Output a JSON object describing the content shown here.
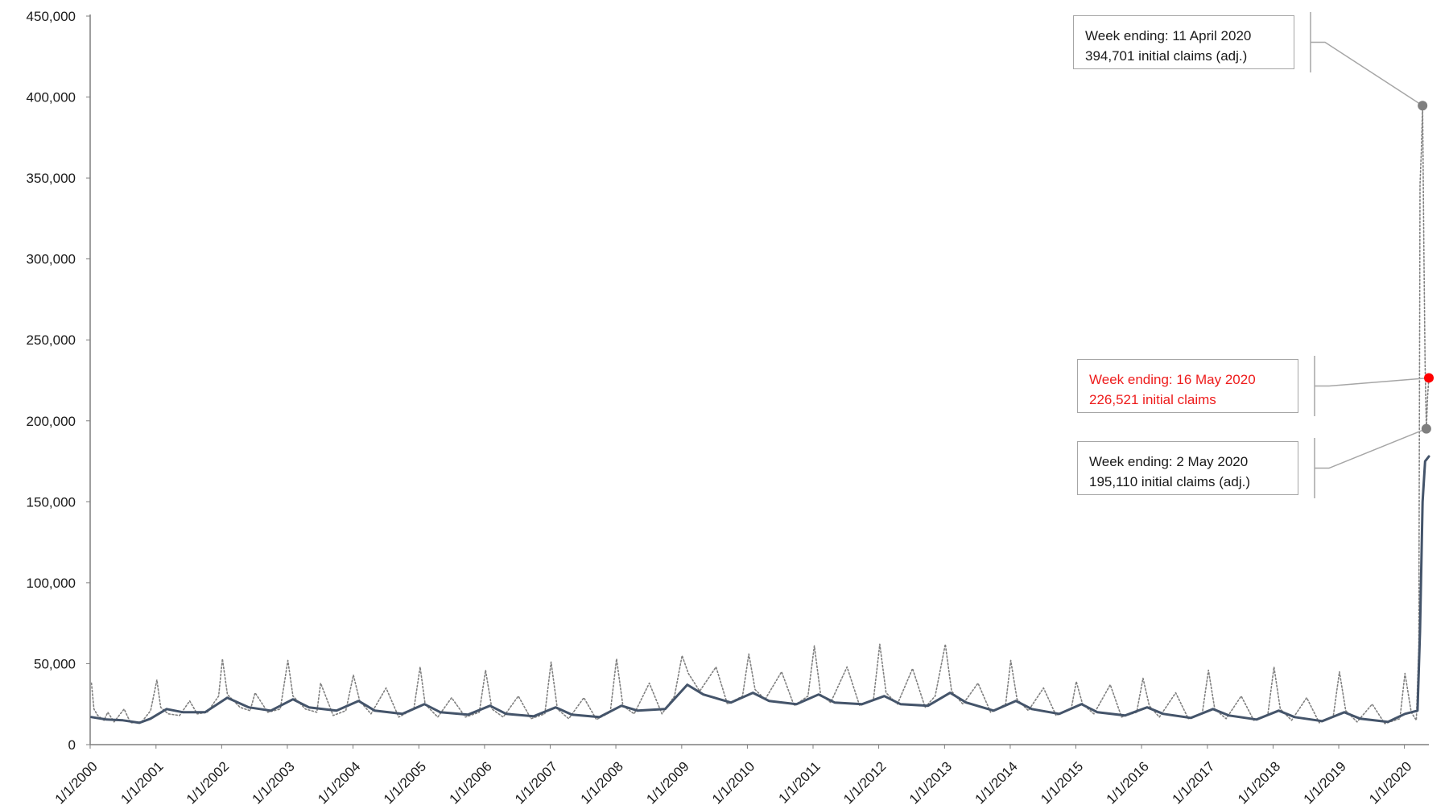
{
  "chart_data": {
    "type": "line",
    "title": "",
    "xlabel": "",
    "ylabel": "",
    "ylim": [
      0,
      450000
    ],
    "yticks": [
      0,
      50000,
      100000,
      150000,
      200000,
      250000,
      300000,
      350000,
      400000,
      450000
    ],
    "ytick_labels": [
      "0",
      "50,000",
      "100,000",
      "150,000",
      "200,000",
      "250,000",
      "300,000",
      "350,000",
      "400,000",
      "450,000"
    ],
    "xlim": [
      "2000-01-01",
      "2020-05-16"
    ],
    "xticks": [
      "2000-01-01",
      "2001-01-01",
      "2002-01-01",
      "2003-01-01",
      "2004-01-01",
      "2005-01-01",
      "2006-01-01",
      "2007-01-01",
      "2008-01-01",
      "2009-01-01",
      "2010-01-01",
      "2011-01-01",
      "2012-01-01",
      "2013-01-01",
      "2014-01-01",
      "2015-01-01",
      "2016-01-01",
      "2017-01-01",
      "2018-01-01",
      "2019-01-01",
      "2020-01-01"
    ],
    "xtick_labels": [
      "1/1/2000",
      "1/1/2001",
      "1/1/2002",
      "1/1/2003",
      "1/1/2004",
      "1/1/2005",
      "1/1/2006",
      "1/1/2007",
      "1/1/2008",
      "1/1/2009",
      "1/1/2010",
      "1/1/2011",
      "1/1/2012",
      "1/1/2013",
      "1/1/2014",
      "1/1/2015",
      "1/1/2016",
      "1/1/2017",
      "1/1/2018",
      "1/1/2019",
      "1/1/2020"
    ],
    "grid": false,
    "legend": "none",
    "series": [
      {
        "style": "dotted",
        "color": "#808080",
        "points": [
          [
            "2000-01-08",
            38000
          ],
          [
            "2000-01-22",
            22000
          ],
          [
            "2000-02-12",
            18000
          ],
          [
            "2000-03-18",
            15000
          ],
          [
            "2000-04-08",
            20000
          ],
          [
            "2000-05-13",
            14000
          ],
          [
            "2000-07-08",
            22000
          ],
          [
            "2000-08-12",
            13500
          ],
          [
            "2000-10-14",
            14000
          ],
          [
            "2000-12-02",
            21000
          ],
          [
            "2001-01-06",
            40000
          ],
          [
            "2001-01-27",
            23000
          ],
          [
            "2001-03-10",
            19000
          ],
          [
            "2001-05-12",
            18000
          ],
          [
            "2001-07-07",
            27000
          ],
          [
            "2001-08-18",
            19000
          ],
          [
            "2001-10-13",
            20000
          ],
          [
            "2001-12-15",
            30000
          ],
          [
            "2002-01-05",
            53000
          ],
          [
            "2002-02-02",
            31000
          ],
          [
            "2002-04-13",
            23000
          ],
          [
            "2002-06-08",
            21000
          ],
          [
            "2002-07-06",
            32000
          ],
          [
            "2002-09-14",
            20000
          ],
          [
            "2002-11-23",
            22000
          ],
          [
            "2003-01-04",
            52000
          ],
          [
            "2003-02-01",
            30000
          ],
          [
            "2003-04-12",
            22000
          ],
          [
            "2003-06-14",
            20000
          ],
          [
            "2003-07-05",
            38000
          ],
          [
            "2003-09-13",
            18000
          ],
          [
            "2003-11-22",
            21000
          ],
          [
            "2004-01-03",
            43000
          ],
          [
            "2004-02-07",
            27000
          ],
          [
            "2004-04-10",
            19000
          ],
          [
            "2004-07-03",
            35000
          ],
          [
            "2004-09-11",
            17000
          ],
          [
            "2004-12-04",
            22000
          ],
          [
            "2005-01-08",
            48000
          ],
          [
            "2005-02-05",
            25000
          ],
          [
            "2005-04-16",
            17000
          ],
          [
            "2005-07-02",
            29000
          ],
          [
            "2005-09-17",
            17000
          ],
          [
            "2005-12-03",
            20000
          ],
          [
            "2006-01-07",
            46000
          ],
          [
            "2006-02-11",
            22000
          ],
          [
            "2006-04-15",
            17000
          ],
          [
            "2006-07-08",
            30000
          ],
          [
            "2006-09-16",
            16000
          ],
          [
            "2006-12-02",
            19000
          ],
          [
            "2007-01-06",
            51000
          ],
          [
            "2007-02-10",
            22000
          ],
          [
            "2007-04-14",
            16000
          ],
          [
            "2007-07-07",
            29000
          ],
          [
            "2007-09-15",
            15500
          ],
          [
            "2007-12-01",
            20000
          ],
          [
            "2008-01-05",
            53000
          ],
          [
            "2008-02-09",
            24000
          ],
          [
            "2008-04-12",
            19000
          ],
          [
            "2008-07-05",
            38000
          ],
          [
            "2008-09-13",
            19000
          ],
          [
            "2008-11-22",
            30000
          ],
          [
            "2009-01-03",
            55000
          ],
          [
            "2009-02-07",
            44000
          ],
          [
            "2009-04-11",
            33000
          ],
          [
            "2009-07-11",
            48000
          ],
          [
            "2009-09-12",
            25000
          ],
          [
            "2009-12-05",
            30000
          ],
          [
            "2010-01-09",
            56000
          ],
          [
            "2010-02-13",
            34000
          ],
          [
            "2010-04-10",
            28000
          ],
          [
            "2010-07-10",
            45000
          ],
          [
            "2010-09-18",
            24000
          ],
          [
            "2010-12-04",
            30000
          ],
          [
            "2011-01-08",
            61000
          ],
          [
            "2011-02-12",
            31000
          ],
          [
            "2011-04-09",
            26000
          ],
          [
            "2011-07-09",
            48000
          ],
          [
            "2011-09-17",
            24000
          ],
          [
            "2011-12-03",
            28000
          ],
          [
            "2012-01-07",
            62000
          ],
          [
            "2012-02-11",
            32000
          ],
          [
            "2012-04-14",
            25000
          ],
          [
            "2012-07-07",
            47000
          ],
          [
            "2012-09-15",
            23000
          ],
          [
            "2012-11-10",
            30000
          ],
          [
            "2013-01-05",
            62000
          ],
          [
            "2013-02-09",
            33000
          ],
          [
            "2013-04-13",
            25000
          ],
          [
            "2013-07-06",
            38000
          ],
          [
            "2013-09-14",
            20000
          ],
          [
            "2013-12-07",
            25000
          ],
          [
            "2014-01-04",
            52000
          ],
          [
            "2014-02-08",
            28000
          ],
          [
            "2014-04-12",
            21000
          ],
          [
            "2014-07-05",
            35000
          ],
          [
            "2014-09-13",
            18000
          ],
          [
            "2014-12-06",
            22000
          ],
          [
            "2015-01-03",
            39000
          ],
          [
            "2015-02-07",
            25000
          ],
          [
            "2015-04-11",
            19000
          ],
          [
            "2015-07-11",
            37000
          ],
          [
            "2015-09-12",
            17000
          ],
          [
            "2015-12-05",
            20000
          ],
          [
            "2016-01-09",
            41000
          ],
          [
            "2016-02-13",
            24000
          ],
          [
            "2016-04-09",
            17000
          ],
          [
            "2016-07-09",
            32000
          ],
          [
            "2016-09-17",
            16000
          ],
          [
            "2016-12-03",
            19000
          ],
          [
            "2017-01-07",
            46000
          ],
          [
            "2017-02-11",
            22000
          ],
          [
            "2017-04-15",
            16000
          ],
          [
            "2017-07-08",
            30000
          ],
          [
            "2017-09-16",
            15000
          ],
          [
            "2017-12-02",
            18000
          ],
          [
            "2018-01-06",
            48000
          ],
          [
            "2018-02-10",
            22000
          ],
          [
            "2018-04-14",
            15000
          ],
          [
            "2018-07-07",
            29000
          ],
          [
            "2018-09-15",
            13500
          ],
          [
            "2018-12-01",
            17000
          ],
          [
            "2019-01-05",
            45000
          ],
          [
            "2019-02-09",
            21000
          ],
          [
            "2019-04-13",
            14000
          ],
          [
            "2019-07-06",
            25000
          ],
          [
            "2019-09-14",
            13000
          ],
          [
            "2019-12-07",
            16000
          ],
          [
            "2020-01-04",
            44000
          ],
          [
            "2020-02-08",
            20000
          ],
          [
            "2020-03-07",
            15000
          ],
          [
            "2020-03-21",
            60000
          ],
          [
            "2020-03-28",
            346000
          ],
          [
            "2020-04-04",
            366000
          ],
          [
            "2020-04-11",
            394701
          ],
          [
            "2020-04-18",
            310000
          ],
          [
            "2020-04-25",
            235000
          ],
          [
            "2020-05-02",
            195110
          ],
          [
            "2020-05-09",
            215000
          ],
          [
            "2020-05-16",
            226521
          ]
        ]
      },
      {
        "style": "solid",
        "color": "#44546a",
        "points": [
          [
            "2000-01-08",
            17000
          ],
          [
            "2000-04-01",
            15500
          ],
          [
            "2000-07-01",
            15000
          ],
          [
            "2000-10-01",
            13500
          ],
          [
            "2000-12-01",
            16000
          ],
          [
            "2001-03-01",
            22000
          ],
          [
            "2001-06-01",
            20000
          ],
          [
            "2001-10-01",
            20000
          ],
          [
            "2002-02-01",
            29000
          ],
          [
            "2002-06-01",
            23000
          ],
          [
            "2002-10-01",
            21000
          ],
          [
            "2003-02-01",
            28000
          ],
          [
            "2003-05-01",
            23000
          ],
          [
            "2003-10-01",
            21000
          ],
          [
            "2004-02-01",
            27000
          ],
          [
            "2004-05-01",
            21000
          ],
          [
            "2004-10-01",
            19000
          ],
          [
            "2005-02-01",
            25000
          ],
          [
            "2005-05-01",
            20000
          ],
          [
            "2005-10-01",
            18500
          ],
          [
            "2006-02-01",
            24000
          ],
          [
            "2006-05-01",
            19000
          ],
          [
            "2006-10-01",
            17500
          ],
          [
            "2007-02-01",
            23000
          ],
          [
            "2007-05-01",
            18500
          ],
          [
            "2007-10-01",
            17000
          ],
          [
            "2008-02-01",
            24000
          ],
          [
            "2008-05-01",
            21000
          ],
          [
            "2008-10-01",
            22000
          ],
          [
            "2009-02-01",
            37000
          ],
          [
            "2009-05-01",
            31000
          ],
          [
            "2009-10-01",
            26000
          ],
          [
            "2010-02-01",
            32000
          ],
          [
            "2010-05-01",
            27000
          ],
          [
            "2010-10-01",
            25000
          ],
          [
            "2011-02-01",
            31000
          ],
          [
            "2011-05-01",
            26000
          ],
          [
            "2011-10-01",
            25000
          ],
          [
            "2012-02-01",
            30000
          ],
          [
            "2012-05-01",
            25000
          ],
          [
            "2012-10-01",
            24000
          ],
          [
            "2013-02-01",
            32000
          ],
          [
            "2013-05-01",
            26000
          ],
          [
            "2013-10-01",
            21000
          ],
          [
            "2014-02-01",
            27000
          ],
          [
            "2014-05-01",
            22000
          ],
          [
            "2014-10-01",
            19000
          ],
          [
            "2015-02-01",
            25000
          ],
          [
            "2015-05-01",
            20000
          ],
          [
            "2015-10-01",
            18000
          ],
          [
            "2016-02-01",
            23000
          ],
          [
            "2016-05-01",
            19000
          ],
          [
            "2016-10-01",
            16500
          ],
          [
            "2017-02-01",
            22000
          ],
          [
            "2017-05-01",
            18000
          ],
          [
            "2017-10-01",
            15500
          ],
          [
            "2018-02-01",
            21000
          ],
          [
            "2018-05-01",
            17000
          ],
          [
            "2018-10-01",
            14500
          ],
          [
            "2019-02-01",
            20000
          ],
          [
            "2019-05-01",
            16000
          ],
          [
            "2019-10-01",
            14000
          ],
          [
            "2020-01-04",
            19000
          ],
          [
            "2020-03-14",
            21000
          ],
          [
            "2020-03-28",
            70000
          ],
          [
            "2020-04-11",
            150000
          ],
          [
            "2020-04-25",
            175000
          ],
          [
            "2020-05-16",
            178000
          ]
        ]
      }
    ],
    "annotations": [
      {
        "line1": "Week ending: 11 April 2020",
        "line2": "394,701 initial claims (adj.)",
        "x": "2020-04-11",
        "y": 394701,
        "color": "#7f7f7f",
        "text_color": "#1a1a1a"
      },
      {
        "line1": "Week ending: 16 May 2020",
        "line2": "226,521 initial claims",
        "x": "2020-05-16",
        "y": 226521,
        "color": "#ff0000",
        "text_color": "#ee1c1c"
      },
      {
        "line1": "Week ending: 2 May 2020",
        "line2": "195,110 initial claims (adj.)",
        "x": "2020-05-02",
        "y": 195110,
        "color": "#7f7f7f",
        "text_color": "#1a1a1a"
      }
    ]
  }
}
